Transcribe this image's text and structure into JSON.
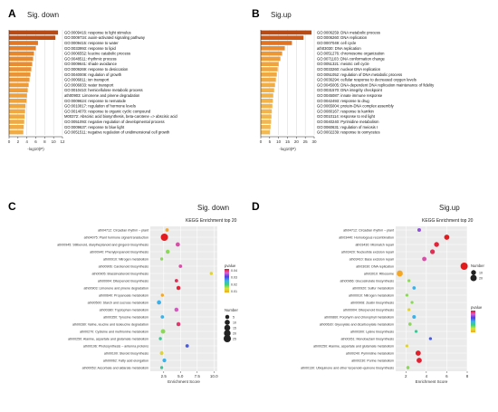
{
  "panels": {
    "A": {
      "letter": "A",
      "title": "Sig. down"
    },
    "B": {
      "letter": "B",
      "title": "Sig.up"
    },
    "C": {
      "letter": "C",
      "title": "Sig. down",
      "subtitle": "KEGG Enrichment top 20"
    },
    "D": {
      "letter": "D",
      "title": "Sig.up",
      "subtitle": "KEGG Enrichment top 20"
    }
  },
  "colors": {
    "bar_scale": [
      "#f6d06a",
      "#f0a73f",
      "#dd6a1e",
      "#b84a15"
    ],
    "gradient_C": [
      "#e31a1c",
      "#d65fd5",
      "#4b3fe0",
      "#3db0e8",
      "#3ecf7a",
      "#d9e33a",
      "#f5a623"
    ],
    "gradient_D": [
      "#e31a1c",
      "#d65fd5",
      "#4b3fe0",
      "#3db0e8",
      "#3ecf7a",
      "#d9e33a",
      "#f5a623"
    ],
    "panel_bg": "#ebebeb",
    "grid": "#ffffff"
  },
  "chart_data": [
    {
      "panel": "A",
      "type": "bar",
      "orientation": "horizontal",
      "title": "Sig. down",
      "xlabel": "-log10(P)",
      "xlim": [
        0,
        12
      ],
      "xticks": [
        0,
        2,
        4,
        6,
        8,
        10,
        12
      ],
      "categories": [
        "GO:0009416: response to light stimulus",
        "GO:0009734: auxin-activated signaling pathway",
        "GO:0009415: response to water",
        "GO:0033993: response to lipid",
        "GO:0006552: leucine catabolic process",
        "GO:0048511: rhythmic process",
        "GO:0009641: shade avoidance",
        "GO:0009269: response to desiccation",
        "GO:0040008: regulation of growth",
        "GO:0006811: ion transport",
        "GO:0006833: water transport",
        "GO:0010410: hemicellulose metabolic process",
        "ath00903: Limonene and pinene degradation",
        "GO:0009624: response to nematode",
        "GO:0010817: regulation of hormone levels",
        "GO:0014070: response to organic cyclic compound",
        "M00372: Abscisic acid biosynthesis, beta-carotene => abscisic acid",
        "GO:0051093: negative regulation of developmental process",
        "GO:0009637: response to blue light",
        "GO:0051511: negative regulation of unidimensional cell growth"
      ],
      "values": [
        11.0,
        10.4,
        6.5,
        6.0,
        5.6,
        5.4,
        5.2,
        5.0,
        4.8,
        4.6,
        4.4,
        4.2,
        4.0,
        3.9,
        3.7,
        3.6,
        3.5,
        3.4,
        3.3,
        3.2
      ]
    },
    {
      "panel": "B",
      "type": "bar",
      "orientation": "horizontal",
      "title": "Sig.up",
      "xlabel": "-log10(P)",
      "xlim": [
        0,
        30
      ],
      "xticks": [
        0,
        5,
        10,
        15,
        20,
        25,
        30
      ],
      "xticklabels": [
        "0",
        "5",
        "10",
        "15",
        "20",
        "25",
        "30"
      ],
      "categories": [
        "GO:0006259: DNA metabolic process",
        "GO:0006260: DNA replication",
        "GO:0007049: cell cycle",
        "ath03030: DNA replication",
        "GO:0051276: chromosome organization",
        "GO:0071103: DNA conformation change",
        "GO:0051321: meiotic cell cycle",
        "GO:0033260: nuclear DNA replication",
        "GO:0051052: regulation of DNA metabolic process",
        "GO:0036294: cellular response to decreased oxygen levels",
        "GO:0045005: DNA-dependent DNA replication maintenance of fidelity",
        "GO:0031570: DNA integrity checkpoint",
        "GO:0045087: innate immune response",
        "GO:0042493: response to drug",
        "GO:0065004: protein-DNA complex assembly",
        "GO:0080167: response to karrikin",
        "GO:0010114: response to red light",
        "GO:0040240: Pyrimidine metabolism",
        "GO:0060631: regulation of meiosis I",
        "GO:0002239: response to oomycetes"
      ],
      "values": [
        28.5,
        24.0,
        17.5,
        13.5,
        12.0,
        11.0,
        10.0,
        9.5,
        9.0,
        8.5,
        8.0,
        7.5,
        7.0,
        6.8,
        6.5,
        6.2,
        6.0,
        5.8,
        5.5,
        5.2
      ]
    },
    {
      "panel": "C",
      "type": "scatter",
      "title": "Sig. down",
      "subtitle": "KEGG Enrichment top 20",
      "xlabel": "Enrichment Score",
      "xlim": [
        0.5,
        10.5
      ],
      "xticks": [
        2.5,
        5.0,
        7.5,
        10.0
      ],
      "xticklabels": [
        "2.5",
        "5.0",
        "7.5",
        "10.0"
      ],
      "color_legend": {
        "title": "pvalue",
        "labels": [
          "0.04",
          "0.03",
          "0.02",
          "0.01"
        ]
      },
      "size_legend": {
        "title": "Number",
        "labels": [
          "5",
          "10",
          "15",
          "20",
          "25"
        ],
        "values": [
          5,
          10,
          15,
          20,
          25
        ]
      },
      "categories": [
        "ath04712: Circadian rhythm – plant",
        "ath04075: Plant hormone signal transduction",
        "ath00945: Stilbenoid, diarylheptanoid and gingerol biosynthesis",
        "ath00940: Phenylpropanoid biosynthesis",
        "ath00910: Nitrogen metabolism",
        "ath00906: Carotenoid biosynthesis",
        "ath00905: Brassinosteroid biosynthesis",
        "ath00904: Diterpenoid biosynthesis",
        "ath00903: Limonene and pinene degradation",
        "ath00640: Propanoate metabolism",
        "ath00500: Starch and sucrose metabolism",
        "ath00380: Tryptophan metabolism",
        "ath00350: Tyrosine metabolism",
        "ath00280: Valine, leucine and isoleucine degradation",
        "ath00270: Cysteine and methionine metabolism",
        "ath00250: Alanine, aspartate and glutamate metabolism",
        "ath00196: Photosynthesis – antenna proteins",
        "ath00100: Steroid biosynthesis",
        "ath00062: Fatty acid elongation",
        "ath00053: Ascorbate and aldarate metabolism"
      ],
      "enrichment": [
        3.0,
        2.6,
        4.6,
        3.1,
        2.2,
        5.0,
        9.6,
        4.4,
        4.7,
        2.3,
        1.8,
        4.4,
        2.3,
        4.7,
        2.4,
        2.0,
        6.0,
        2.2,
        2.6,
        2.2
      ],
      "number": [
        3,
        25,
        6,
        5,
        2,
        3,
        2,
        3,
        5,
        2,
        6,
        5,
        3,
        5,
        7,
        2,
        3,
        4,
        4,
        2
      ],
      "pvalue": [
        0.04,
        0.0001,
        0.005,
        0.03,
        0.03,
        0.005,
        0.035,
        0.002,
        0.001,
        0.04,
        0.02,
        0.006,
        0.02,
        0.003,
        0.03,
        0.025,
        0.015,
        0.035,
        0.02,
        0.025
      ]
    },
    {
      "panel": "D",
      "type": "scatter",
      "title": "Sig.up",
      "subtitle": "KEGG Enrichment top 20",
      "xlabel": "Enrichment Score",
      "xlim": [
        1.0,
        8.0
      ],
      "xticks": [
        2,
        4,
        6,
        8
      ],
      "xticklabels": [
        "2",
        "4",
        "6",
        "8"
      ],
      "color_legend": {
        "title": "pvalue"
      },
      "size_legend": {
        "title": "Number",
        "labels": [
          "10",
          "20"
        ],
        "values": [
          10,
          20
        ]
      },
      "categories": [
        "ath04712: Circadian rhythm – plant",
        "ath03440: Homologous recombination",
        "ath03430: Mismatch repair",
        "ath03420: Nucleotide excision repair",
        "ath03410: Base excision repair",
        "ath03030: DNA replication",
        "ath03010: Ribosome",
        "ath00966: Glucosinolate biosynthesis",
        "ath00920: Sulfur metabolism",
        "ath00910: Nitrogen metabolism",
        "ath00908: Zeatin biosynthesis",
        "ath00904: Diterpenoid biosynthesis",
        "ath00860: Porphyrin and chlorophyll metabolism",
        "ath00630: Glyoxylate and dicarboxylate metabolism",
        "ath00300: Lysine biosynthesis",
        "ath00261: Monobactam biosynthesis",
        "ath00250: Alanine, aspartate and glutamate metabolism",
        "ath00240: Pyrimidine metabolism",
        "ath00230: Purine metabolism",
        "ath00130: Ubiquinone and other terpenoid–quinone biosynthesis"
      ],
      "enrichment": [
        3.3,
        6.0,
        5.0,
        4.6,
        3.8,
        7.7,
        1.4,
        2.3,
        2.8,
        2.1,
        2.6,
        2.3,
        2.8,
        2.4,
        3.0,
        4.4,
        2.1,
        3.2,
        3.3,
        2.2
      ],
      "number": [
        4,
        12,
        10,
        9,
        7,
        28,
        18,
        2,
        3,
        2,
        2,
        2,
        4,
        3,
        2,
        2,
        2,
        12,
        12,
        3
      ],
      "pvalue": [
        0.01,
        0.0001,
        0.001,
        0.002,
        0.005,
        1e-05,
        0.04,
        0.03,
        0.02,
        0.03,
        0.03,
        0.035,
        0.02,
        0.03,
        0.025,
        0.015,
        0.035,
        0.0005,
        0.0008,
        0.03
      ]
    }
  ]
}
